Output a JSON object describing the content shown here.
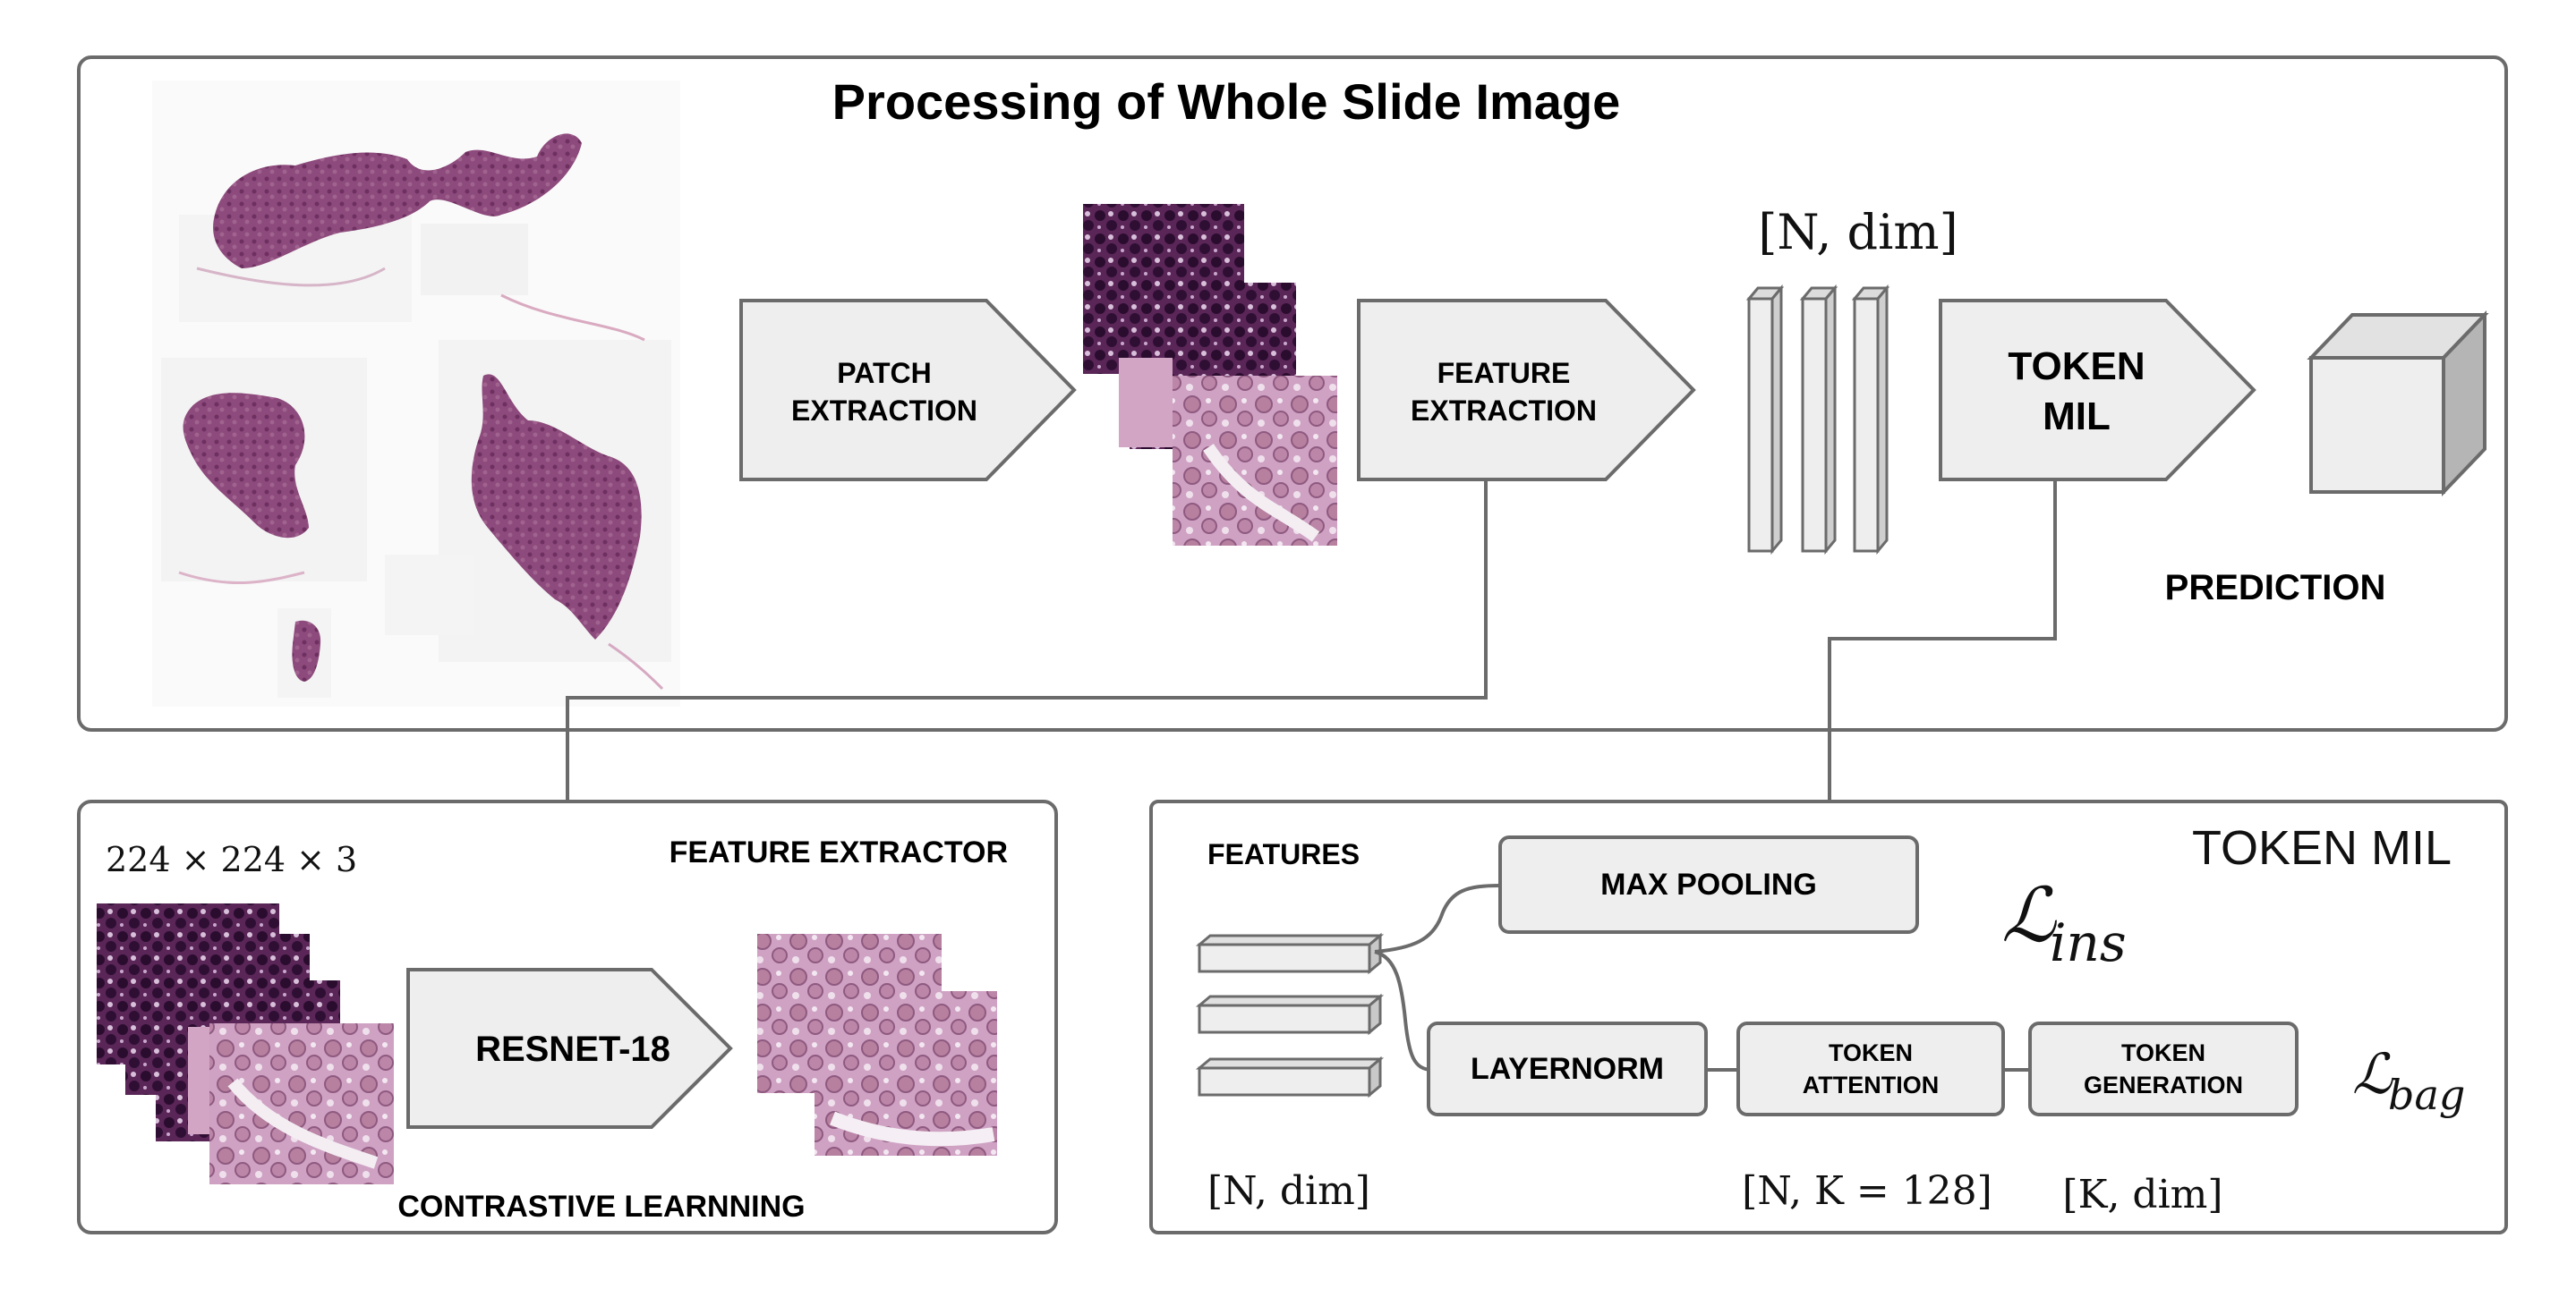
{
  "top_panel": {
    "title": "Processing of Whole Slide Image",
    "patch_extraction": [
      "PATCH",
      "EXTRACTION"
    ],
    "feature_extraction": [
      "FEATURE",
      "EXTRACTION"
    ],
    "dim_label": "[N, dim]",
    "token_mil": [
      "TOKEN",
      "MIL"
    ],
    "prediction": "PREDICTION"
  },
  "feature_extractor_panel": {
    "title": "FEATURE EXTRACTOR",
    "input_size": "224 × 224 × 3",
    "resnet": "RESNET-18",
    "caption": "CONTRASTIVE LEARNNING"
  },
  "token_mil_panel": {
    "title": "TOKEN MIL",
    "features": "FEATURES",
    "max_pooling": "MAX POOLING",
    "layernorm": "LAYERNORM",
    "token_attention": [
      "TOKEN",
      "ATTENTION"
    ],
    "token_generation": [
      "TOKEN",
      "GENERATION"
    ],
    "loss_ins_sub": "ins",
    "loss_bag_sub": "bag",
    "label_n_dim": "[N, dim]",
    "label_n_k": "[N, K = 128]",
    "label_k_dim": "[K, dim]"
  },
  "colors": {
    "frame": "#6b6b6b",
    "box_fill": "#eeeeee",
    "tissue": "#8c4a7a",
    "tissue_light": "#c88bb0"
  }
}
